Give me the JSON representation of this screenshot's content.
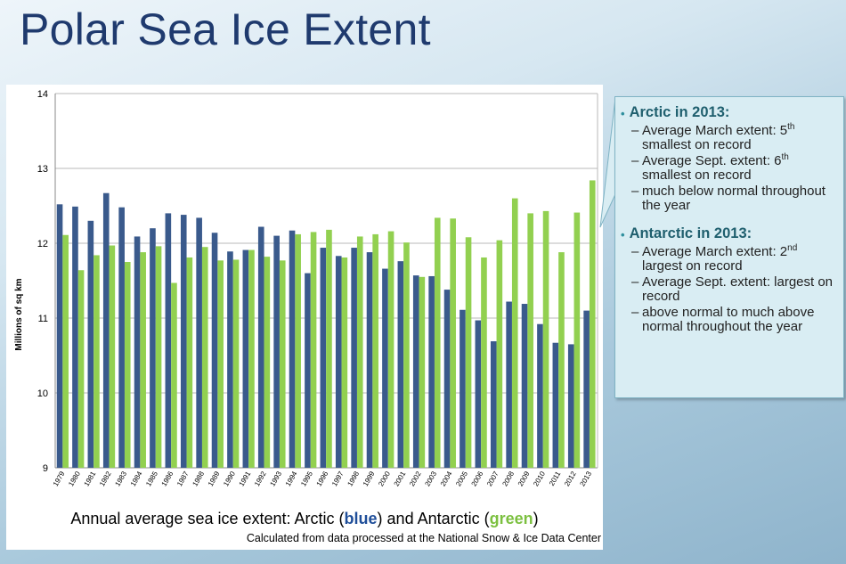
{
  "slide": {
    "title": "Polar Sea Ice Extent"
  },
  "chart_data": {
    "type": "bar",
    "title": "Annual average sea ice extent: Arctic (blue) and Antarctic (green)",
    "title_parts": {
      "prefix": "Annual average sea ice extent: Arctic (",
      "blue": "blue",
      "middle": ") and Antarctic (",
      "green": "green",
      "suffix": ")"
    },
    "subtitle": "Calculated from data processed at the National Snow & Ice Data Center",
    "xlabel": "",
    "ylabel": "Millions of sq km",
    "ylim": [
      9,
      14
    ],
    "yticks": [
      "9",
      "10",
      "11",
      "12",
      "13",
      "14"
    ],
    "grid": true,
    "categories": [
      "1979",
      "1980",
      "1981",
      "1982",
      "1983",
      "1984",
      "1985",
      "1986",
      "1987",
      "1988",
      "1989",
      "1990",
      "1991",
      "1992",
      "1993",
      "1994",
      "1995",
      "1996",
      "1997",
      "1998",
      "1999",
      "2000",
      "2001",
      "2002",
      "2003",
      "2004",
      "2005",
      "2006",
      "2007",
      "2008",
      "2009",
      "2010",
      "2011",
      "2012",
      "2013"
    ],
    "series": [
      {
        "name": "Arctic",
        "color": "#3a5a8c",
        "values": [
          12.52,
          12.49,
          12.3,
          12.67,
          12.48,
          12.09,
          12.2,
          12.4,
          12.38,
          12.34,
          12.14,
          11.89,
          11.91,
          12.22,
          12.1,
          12.17,
          11.6,
          11.94,
          11.83,
          11.94,
          11.88,
          11.66,
          11.76,
          11.57,
          11.56,
          11.38,
          11.11,
          10.97,
          10.69,
          11.22,
          11.19,
          10.92,
          10.67,
          10.65,
          11.1
        ]
      },
      {
        "name": "Antarctic",
        "color": "#92d050",
        "values": [
          12.11,
          11.64,
          11.84,
          11.97,
          11.75,
          11.88,
          11.96,
          11.47,
          11.81,
          11.95,
          11.77,
          11.78,
          11.91,
          11.82,
          11.77,
          12.12,
          12.15,
          12.18,
          11.81,
          12.09,
          12.12,
          12.16,
          12.01,
          11.55,
          12.34,
          12.33,
          12.08,
          11.81,
          12.04,
          12.6,
          12.4,
          12.43,
          11.88,
          12.41,
          12.84
        ]
      }
    ]
  },
  "callout": {
    "sections": [
      {
        "heading": "Arctic in 2013:",
        "items": [
          {
            "text": "Average March extent: 5",
            "sup": "th",
            "after": " smallest on record"
          },
          {
            "text": "Average Sept. extent: 6",
            "sup": "th",
            "after": " smallest on record"
          },
          {
            "text": "much below normal throughout the year",
            "sup": "",
            "after": ""
          }
        ]
      },
      {
        "heading": "Antarctic in 2013:",
        "items": [
          {
            "text": "Average March extent: 2",
            "sup": "nd",
            "after": " largest on record"
          },
          {
            "text": "Average Sept. extent: largest on record",
            "sup": "",
            "after": ""
          },
          {
            "text": "above normal to much above normal throughout the year",
            "sup": "",
            "after": ""
          }
        ]
      }
    ]
  }
}
